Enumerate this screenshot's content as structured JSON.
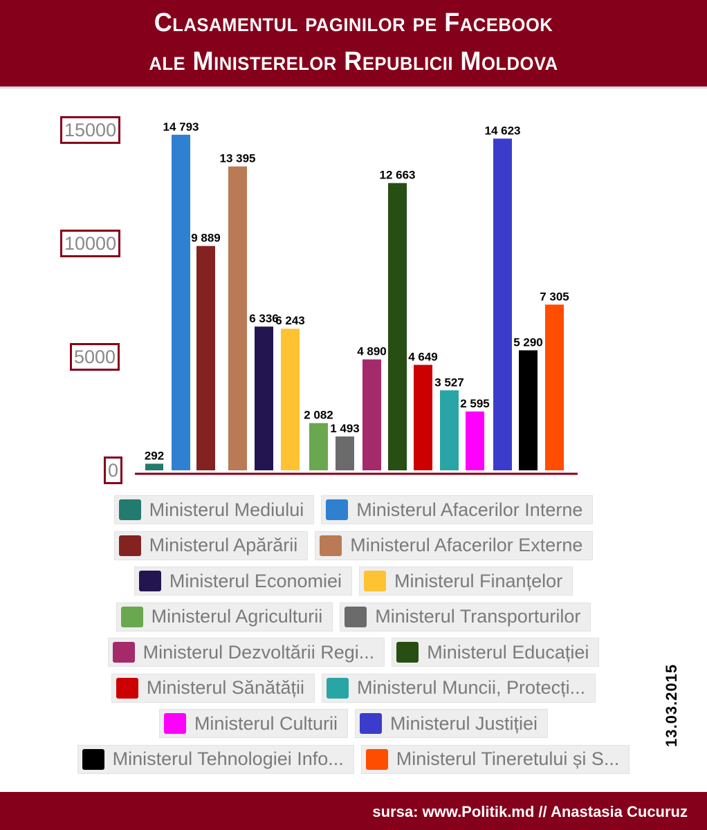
{
  "header": {
    "title_line1": "Clasamentul paginilor pe Facebook",
    "title_line2": "ale Ministerelor Republicii Moldova"
  },
  "chart_data": {
    "type": "bar",
    "title": "Clasamentul paginilor pe Facebook ale Ministerelor Republicii Moldova",
    "categories": [
      "Ministerul Mediului",
      "Ministerul Afacerilor Interne",
      "Ministerul Apărării",
      "Ministerul Afacerilor Externe",
      "Ministerul Economiei",
      "Ministerul Finanțelor",
      "Ministerul Agriculturii",
      "Ministerul Transporturilor",
      "Ministerul Dezvoltării Regi...",
      "Ministerul Educației",
      "Ministerul Sănătății",
      "Ministerul Muncii, Protecți...",
      "Ministerul Culturii",
      "Ministerul Justiției",
      "Ministerul Tehnologiei Info...",
      "Ministerul Tineretului și S..."
    ],
    "values": [
      292,
      14793,
      9889,
      13395,
      6336,
      6243,
      2082,
      1493,
      4890,
      12663,
      4649,
      3527,
      2595,
      14623,
      5290,
      7305
    ],
    "value_labels": [
      "292",
      "14 793",
      "9 889",
      "13 395",
      "6 336",
      "6 243",
      "2 082",
      "1 493",
      "4 890",
      "12 663",
      "4 649",
      "3 527",
      "2 595",
      "14 623",
      "5 290",
      "7 305"
    ],
    "colors": [
      "#237a6e",
      "#2f80d0",
      "#842222",
      "#b97a55",
      "#231550",
      "#ffc233",
      "#6aa84f",
      "#6b6b6b",
      "#a52a6a",
      "#274e13",
      "#cc0000",
      "#2aa5a5",
      "#ff00ff",
      "#3c3ccc",
      "#000000",
      "#ff4d00"
    ],
    "yticks": [
      "0",
      "5000",
      "10000",
      "15000"
    ],
    "ylim": [
      0,
      15000
    ],
    "grid": false,
    "legend": "bottom"
  },
  "date": "13.03.2015",
  "footer": {
    "source": "sursa: www.Politik.md // Anastasia Cucuruz"
  }
}
